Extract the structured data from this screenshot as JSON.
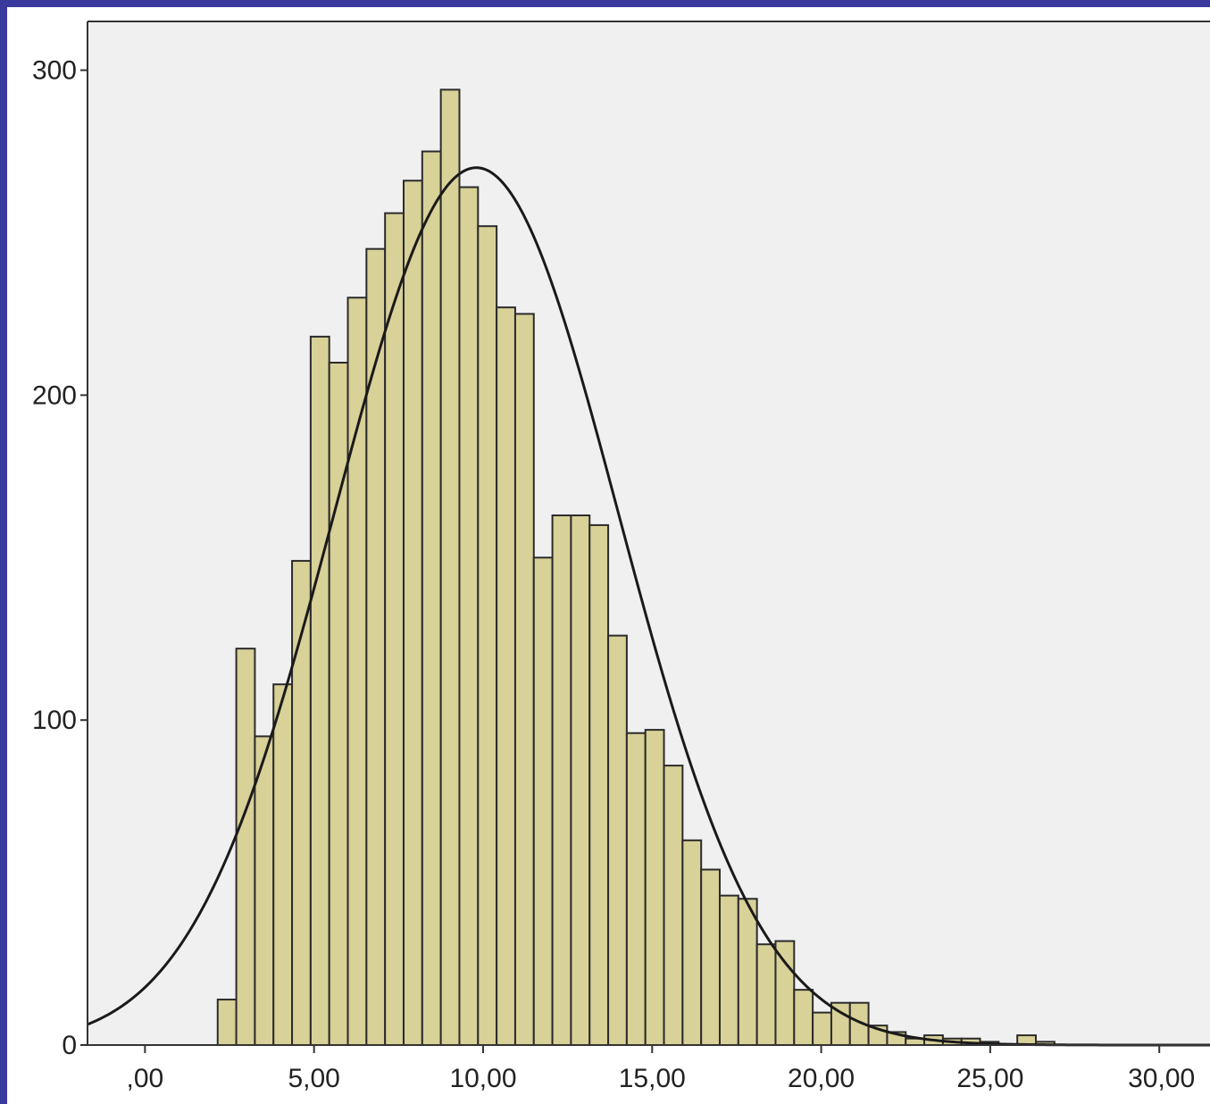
{
  "colors": {
    "frame": "#3a3a9e",
    "plot_background": "#f0f0f0",
    "bar_fill": "#d8d198",
    "bar_stroke": "#2b2b2b",
    "curve": "#1a1a1a"
  },
  "chart_data": {
    "type": "bar",
    "histogram": true,
    "bin_width": 0.55,
    "bin_start": 2.15,
    "values": [
      14,
      122,
      95,
      111,
      149,
      218,
      210,
      230,
      245,
      256,
      266,
      275,
      294,
      264,
      252,
      227,
      225,
      150,
      163,
      163,
      160,
      126,
      96,
      97,
      86,
      63,
      54,
      46,
      45,
      31,
      32,
      17,
      10,
      13,
      13,
      6,
      4,
      2,
      3,
      2,
      2,
      1,
      0,
      3,
      1,
      0
    ],
    "normal_curve": {
      "mean": 9.8,
      "sd": 4.2,
      "peak": 270
    },
    "xlim": [
      -1.7,
      31.5
    ],
    "ylim": [
      0,
      315
    ],
    "x_ticks": [
      {
        "value": 0,
        "label": ",00"
      },
      {
        "value": 5,
        "label": "5,00"
      },
      {
        "value": 10,
        "label": "10,00"
      },
      {
        "value": 15,
        "label": "15,00"
      },
      {
        "value": 20,
        "label": "20,00"
      },
      {
        "value": 25,
        "label": "25,00"
      },
      {
        "value": 30,
        "label": "30,00"
      }
    ],
    "y_ticks": [
      {
        "value": 0,
        "label": "0"
      },
      {
        "value": 100,
        "label": "100"
      },
      {
        "value": 200,
        "label": "200"
      },
      {
        "value": 300,
        "label": "300"
      }
    ],
    "title": "",
    "xlabel": "",
    "ylabel": "",
    "grid": false
  }
}
